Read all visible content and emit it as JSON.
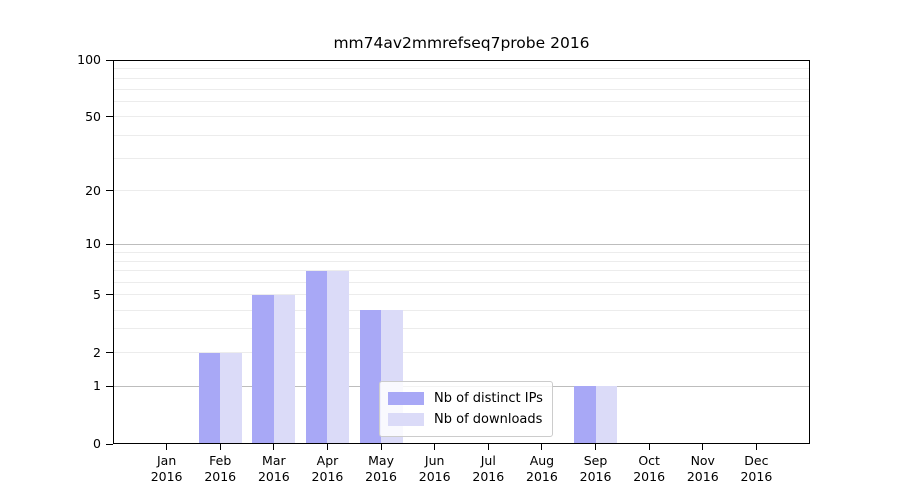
{
  "chart_data": {
    "type": "bar",
    "title": "mm74av2mmrefseq7probe 2016",
    "categories": [
      "Jan 2016",
      "Feb 2016",
      "Mar 2016",
      "Apr 2016",
      "May 2016",
      "Jun 2016",
      "Jul 2016",
      "Aug 2016",
      "Sep 2016",
      "Oct 2016",
      "Nov 2016",
      "Dec 2016"
    ],
    "series": [
      {
        "name": "Nb of distinct IPs",
        "color": "#a8a8f6",
        "values": [
          0,
          2,
          5,
          7,
          4,
          0,
          0,
          0,
          1,
          0,
          0,
          0
        ]
      },
      {
        "name": "Nb of downloads",
        "color": "#dbdbf8",
        "values": [
          0,
          2,
          5,
          7,
          4,
          0,
          0,
          0,
          1,
          0,
          0,
          0
        ]
      }
    ],
    "xlabel": "",
    "ylabel": "",
    "ylim": [
      0,
      100
    ],
    "yscale": "log1p",
    "y_tick_values": [
      100,
      50,
      20,
      10,
      5,
      2,
      1,
      0
    ],
    "y_tick_labels": [
      "100",
      "50",
      "20",
      "10",
      "5",
      "2",
      "1",
      "0"
    ],
    "y_major_gridlines": [
      1,
      10,
      100
    ],
    "y_minor_gridlines": [
      2,
      3,
      4,
      5,
      6,
      7,
      8,
      9,
      20,
      30,
      40,
      50,
      60,
      70,
      80,
      90
    ],
    "grid": "horizontal",
    "legend_position": "lower center"
  },
  "style": {
    "background": "#ffffff",
    "bar_color_distinct_ips": "#a8a8f6",
    "bar_color_downloads": "#dbdbf8",
    "major_grid_color": "#bdbdbd",
    "minor_grid_color": "#ececec",
    "axis_color": "#000000",
    "text_color": "#000000",
    "legend_border_color": "#cccccc"
  }
}
